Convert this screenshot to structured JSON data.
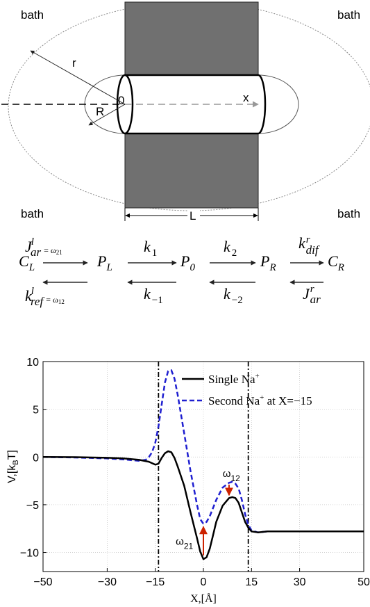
{
  "membrane": {
    "bath_labels": [
      "bath",
      "bath",
      "bath",
      "bath"
    ],
    "radius_r": "r",
    "radius_R": "R",
    "origin": "0",
    "axis_x": "x",
    "length": "L"
  },
  "scheme": {
    "states": [
      "C",
      "P",
      "P",
      "P",
      "C"
    ],
    "state_subs": [
      "L",
      "L",
      "0",
      "R",
      "R"
    ],
    "forward": [
      {
        "base": "J",
        "sup": "l",
        "sub": "ar",
        "eq": "= ω",
        "eqsub": "21"
      },
      {
        "base": "k",
        "sub": "1"
      },
      {
        "base": "k",
        "sub": "2"
      },
      {
        "base": "k",
        "sup": "r",
        "sub": "dif"
      }
    ],
    "backward": [
      {
        "base": "k",
        "sup": "l",
        "sub": "ref",
        "eq": "= ω",
        "eqsub": "12"
      },
      {
        "base": "k",
        "sub": "−1"
      },
      {
        "base": "k",
        "sub": "−2"
      },
      {
        "base": "J",
        "sup": "r",
        "sub": "ar"
      }
    ]
  },
  "chart_data": {
    "type": "line",
    "xlabel": "X,[Å]",
    "ylabel": "V,[k",
    "ylabel_sub": "B",
    "ylabel_end": "T]",
    "xlim": [
      -50,
      50
    ],
    "ylim": [
      -12,
      10
    ],
    "xticks": [
      -50,
      -30,
      -15,
      0,
      15,
      30,
      50
    ],
    "xtick_labels": [
      "−50",
      "−30",
      "−15",
      "0",
      "15",
      "30",
      "50"
    ],
    "yticks": [
      10,
      5,
      0,
      -5,
      -10
    ],
    "ytick_labels": [
      "10",
      "5",
      "0",
      "−5",
      "−10"
    ],
    "grid": true,
    "legend_placement": "top-right",
    "vlines": [
      -14,
      14
    ],
    "series": [
      {
        "name": "Single Na",
        "sup": "+",
        "color": "#000000",
        "dash": "solid",
        "x": [
          -50,
          -40,
          -30,
          -25,
          -20,
          -17,
          -15,
          -14,
          -13,
          -12,
          -11,
          -10,
          -9,
          -8,
          -6,
          -4,
          -2,
          -1,
          0,
          1,
          2,
          3,
          4,
          6,
          8,
          9,
          10,
          11,
          12,
          13,
          14,
          15,
          17,
          20,
          30,
          40,
          50
        ],
        "y": [
          0,
          -0.02,
          -0.08,
          -0.15,
          -0.3,
          -0.5,
          -0.8,
          -0.7,
          -0.1,
          0.4,
          0.6,
          0.5,
          -0.1,
          -1.0,
          -3.0,
          -5.8,
          -8.5,
          -9.9,
          -10.7,
          -10.5,
          -9.6,
          -8.2,
          -6.8,
          -5.1,
          -4.3,
          -4.2,
          -4.3,
          -4.8,
          -5.8,
          -6.8,
          -7.4,
          -7.8,
          -7.9,
          -7.8,
          -7.8,
          -7.8,
          -7.8
        ]
      },
      {
        "name": "Second Na",
        "sup": "+",
        "name_end": " at X=−15",
        "color": "#1f1fd0",
        "dash": "dashed",
        "x": [
          -50,
          -40,
          -30,
          -25,
          -20,
          -18,
          -17,
          -16,
          -15,
          -14,
          -13,
          -12,
          -11,
          -10,
          -9,
          -8,
          -6,
          -4,
          -2,
          -1,
          0,
          1,
          2,
          4,
          6,
          8,
          9,
          10,
          11,
          12,
          13,
          14,
          15,
          17,
          20,
          30,
          40,
          50
        ],
        "y": [
          0,
          -0.05,
          -0.15,
          -0.25,
          -0.4,
          -0.3,
          0.0,
          0.5,
          1.5,
          3.2,
          5.5,
          7.8,
          9.0,
          9.1,
          8.2,
          6.5,
          2.5,
          -1.5,
          -5.0,
          -6.5,
          -7.0,
          -6.8,
          -6.2,
          -4.5,
          -3.2,
          -2.7,
          -2.6,
          -2.8,
          -3.3,
          -4.5,
          -6.0,
          -7.1,
          -7.7,
          -7.9,
          -7.8,
          -7.8,
          -7.8,
          -7.8
        ]
      }
    ],
    "annotations": [
      {
        "text": "ω",
        "sub": "21",
        "color": "#cc2200"
      },
      {
        "text": "ω",
        "sub": "12",
        "color": "#cc2200"
      }
    ]
  }
}
